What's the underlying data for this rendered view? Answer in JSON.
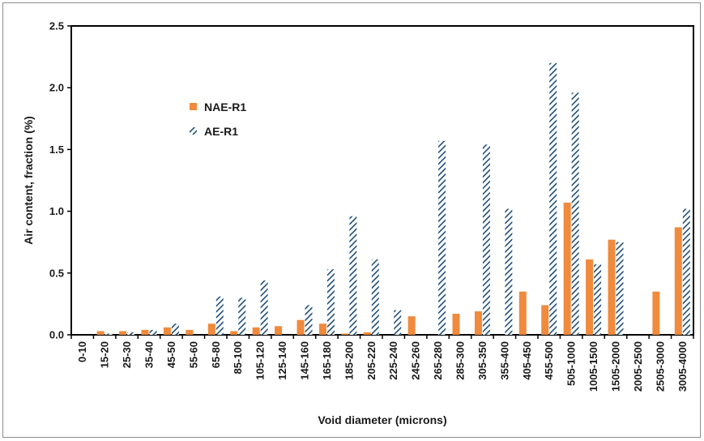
{
  "chart_data": {
    "type": "bar",
    "title": "",
    "xlabel": "Void diameter (microns)",
    "ylabel": "Air content, fraction (%)",
    "ylim": [
      0,
      2.5
    ],
    "yticks": [
      "0.0",
      "0.5",
      "1.0",
      "1.5",
      "2.0",
      "2.5"
    ],
    "grid": false,
    "legend_position": "upper-left",
    "categories": [
      "0-10",
      "15-20",
      "25-30",
      "35-40",
      "45-50",
      "55-60",
      "65-80",
      "85-100",
      "105-120",
      "125-140",
      "145-160",
      "165-180",
      "185-200",
      "205-220",
      "225-240",
      "245-260",
      "265-280",
      "285-300",
      "305-350",
      "355-400",
      "405-450",
      "455-500",
      "505-1000",
      "1005-1500",
      "1505-2000",
      "2005-2500",
      "2505-3000",
      "3005-4000"
    ],
    "series": [
      {
        "name": "NAE-R1",
        "color": "#f08a3c",
        "pattern": "solid",
        "values": [
          0.0,
          0.03,
          0.03,
          0.04,
          0.06,
          0.04,
          0.09,
          0.03,
          0.06,
          0.07,
          0.12,
          0.09,
          0.01,
          0.02,
          0.0,
          0.15,
          0.0,
          0.17,
          0.19,
          0.0,
          0.35,
          0.24,
          1.07,
          0.61,
          0.77,
          0.0,
          0.35,
          0.87
        ]
      },
      {
        "name": "AE-R1",
        "color": "#1f4e79",
        "pattern": "diagonal-hatch",
        "values": [
          0.0,
          0.01,
          0.02,
          0.04,
          0.09,
          0.0,
          0.31,
          0.3,
          0.44,
          0.0,
          0.24,
          0.53,
          0.96,
          0.61,
          0.2,
          0.0,
          1.57,
          0.0,
          1.54,
          1.02,
          0.0,
          2.2,
          1.96,
          0.57,
          0.75,
          0.0,
          0.0,
          1.02
        ]
      }
    ]
  }
}
